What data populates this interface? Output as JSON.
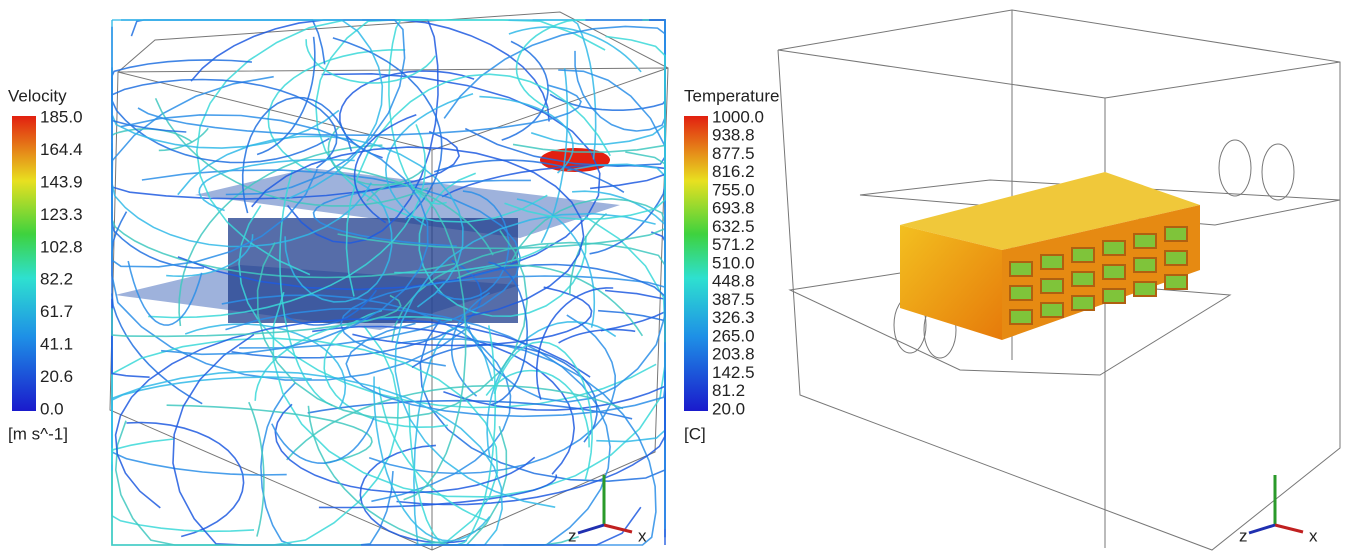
{
  "left_panel": {
    "legend": {
      "title": "Velocity",
      "ticks": [
        "185.0",
        "164.4",
        "143.9",
        "123.3",
        "102.8",
        "82.2",
        "61.7",
        "41.1",
        "20.6",
        "0.0"
      ],
      "unit": "[m s^-1]"
    },
    "axes": {
      "z": "z",
      "x": "x"
    }
  },
  "right_panel": {
    "legend": {
      "title": "Temperature",
      "ticks": [
        "1000.0",
        "938.8",
        "877.5",
        "816.2",
        "755.0",
        "693.8",
        "632.5",
        "571.2",
        "510.0",
        "448.8",
        "387.5",
        "326.3",
        "265.0",
        "203.8",
        "142.5",
        "81.2",
        "20.0"
      ],
      "unit": "[C]"
    },
    "axes": {
      "z": "z",
      "x": "x"
    }
  }
}
